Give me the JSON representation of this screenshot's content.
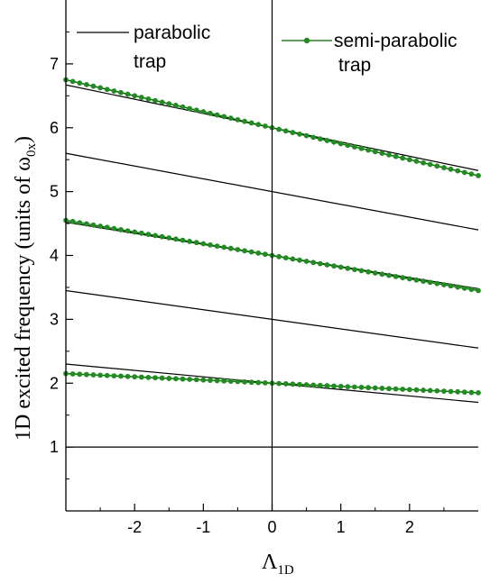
{
  "chart_data": {
    "type": "line",
    "xlabel": {
      "main": "Λ",
      "sub": "1D"
    },
    "ylabel": {
      "pre": "1D excited frequency (units of ω",
      "sub": "0x",
      "post": ")"
    },
    "xlim": [
      -3,
      3
    ],
    "ylim": [
      0,
      8
    ],
    "x_ticks": [
      -2,
      -1,
      0,
      1,
      2
    ],
    "x_tick_labels": [
      "-2",
      "-1",
      "0",
      "1",
      "2"
    ],
    "y_ticks": [
      1,
      2,
      3,
      4,
      5,
      6,
      7
    ],
    "y_tick_labels": [
      "1",
      "2",
      "3",
      "4",
      "5",
      "6",
      "7"
    ],
    "grid": false,
    "legend": {
      "placement": "top",
      "entries": [
        {
          "line1": "parabolic",
          "line2": "trap",
          "marker": false
        },
        {
          "line1": "semi-parabolic",
          "line2": "trap",
          "marker": true
        }
      ]
    },
    "series": [
      {
        "group": "parabolic trap",
        "x": [
          -3,
          3
        ],
        "values": [
          1.0,
          1.0
        ]
      },
      {
        "group": "parabolic trap",
        "x": [
          -3,
          3
        ],
        "values": [
          2.3,
          1.7
        ]
      },
      {
        "group": "parabolic trap",
        "x": [
          -3,
          3
        ],
        "values": [
          3.45,
          2.55
        ]
      },
      {
        "group": "parabolic trap",
        "x": [
          -3,
          3
        ],
        "values": [
          4.52,
          3.48
        ]
      },
      {
        "group": "parabolic trap",
        "x": [
          -3,
          3
        ],
        "values": [
          5.6,
          4.4
        ]
      },
      {
        "group": "parabolic trap",
        "x": [
          -3,
          3
        ],
        "values": [
          6.67,
          5.33
        ]
      },
      {
        "group": "semi-parabolic trap",
        "x": [
          -3,
          3
        ],
        "values": [
          2.15,
          1.85
        ]
      },
      {
        "group": "semi-parabolic trap",
        "x": [
          -3,
          3
        ],
        "values": [
          4.55,
          3.45
        ]
      },
      {
        "group": "semi-parabolic trap",
        "x": [
          -3,
          3
        ],
        "values": [
          6.75,
          5.25
        ]
      }
    ],
    "reference_line": {
      "x": 0
    },
    "colors": {
      "parabolic": "#000000",
      "semi_parabolic_line": "#006400",
      "semi_parabolic_marker": "#228B22"
    }
  }
}
